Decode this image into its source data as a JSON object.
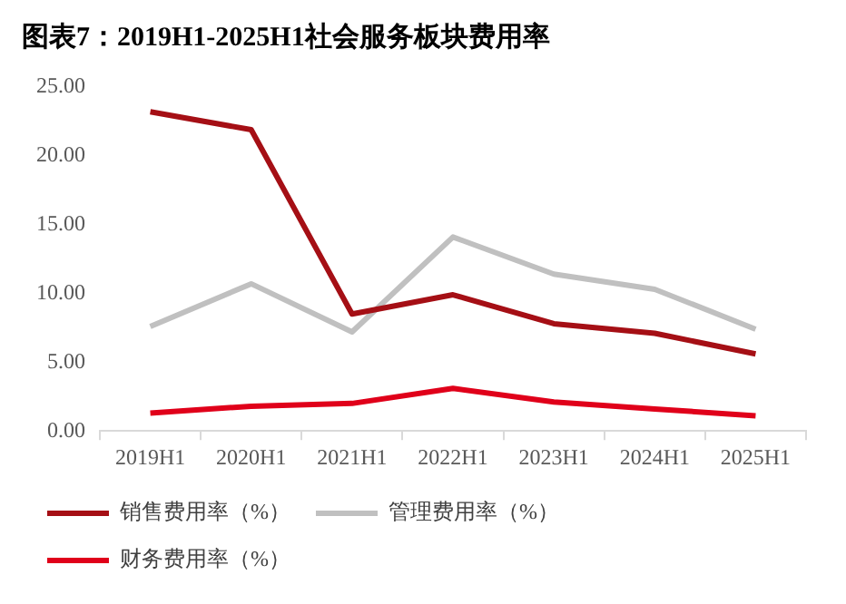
{
  "chart_data": {
    "type": "line",
    "title": "图表7：2019H1-2025H1社会服务板块费用率",
    "categories": [
      "2019H1",
      "2020H1",
      "2021H1",
      "2022H1",
      "2023H1",
      "2024H1",
      "2025H1"
    ],
    "series": [
      {
        "name": "销售费用率（%）",
        "color": "#a50f15",
        "values": [
          23.2,
          21.9,
          8.5,
          9.9,
          7.8,
          7.1,
          5.6
        ]
      },
      {
        "name": "管理费用率（%）",
        "color": "#c0c0c0",
        "values": [
          7.6,
          10.7,
          7.2,
          14.1,
          11.4,
          10.3,
          7.4
        ]
      },
      {
        "name": "财务费用率（%）",
        "color": "#e0001a",
        "values": [
          1.3,
          1.8,
          2.0,
          3.1,
          2.1,
          1.6,
          1.1
        ]
      }
    ],
    "ylim": [
      0,
      25
    ],
    "yticks": [
      {
        "value": 0,
        "label": "0.00"
      },
      {
        "value": 5,
        "label": "5.00"
      },
      {
        "value": 10,
        "label": "10.00"
      },
      {
        "value": 15,
        "label": "15.00"
      },
      {
        "value": 20,
        "label": "20.00"
      },
      {
        "value": 25,
        "label": "25.00"
      }
    ],
    "grid": false,
    "legend": "bottom",
    "marker": "none",
    "line_style": "solid"
  }
}
